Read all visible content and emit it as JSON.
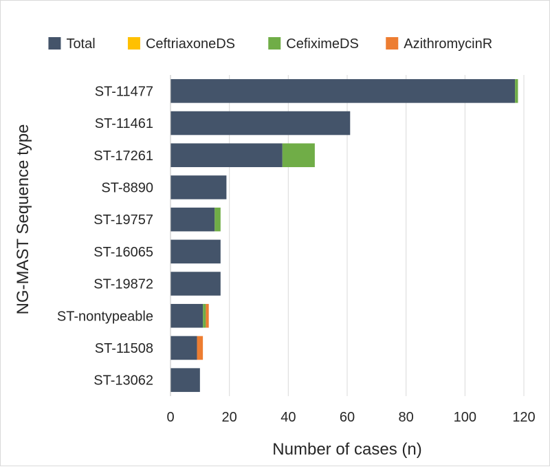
{
  "chart_data": {
    "type": "bar",
    "orientation": "horizontal",
    "stacked": true,
    "title": "",
    "xlabel": "Number of cases (n)",
    "ylabel": "NG-MAST Sequence type",
    "xlim": [
      0,
      120
    ],
    "xticks": [
      0,
      20,
      40,
      60,
      80,
      100,
      120
    ],
    "grid": "vertical",
    "legend_position": "top",
    "categories": [
      "ST-11477",
      "ST-11461",
      "ST-17261",
      "ST-8890",
      "ST-19757",
      "ST-16065",
      "ST-19872",
      "ST-nontypeable",
      "ST-11508",
      "ST-13062"
    ],
    "series": [
      {
        "name": "Total",
        "color": "#44546a",
        "values": [
          117,
          61,
          38,
          19,
          15,
          17,
          17,
          11,
          9,
          10
        ]
      },
      {
        "name": "CeftriaxoneDS",
        "color": "#ffc000",
        "values": [
          0,
          0,
          0,
          0,
          0,
          0,
          0,
          0,
          0,
          0
        ]
      },
      {
        "name": "CefiximeDS",
        "color": "#70ad47",
        "values": [
          1,
          0,
          11,
          0,
          2,
          0,
          0,
          1,
          0,
          0
        ]
      },
      {
        "name": "AzithromycinR",
        "color": "#ed7d31",
        "values": [
          0,
          0,
          0,
          0,
          0,
          0,
          0,
          1,
          2,
          0
        ]
      }
    ]
  }
}
